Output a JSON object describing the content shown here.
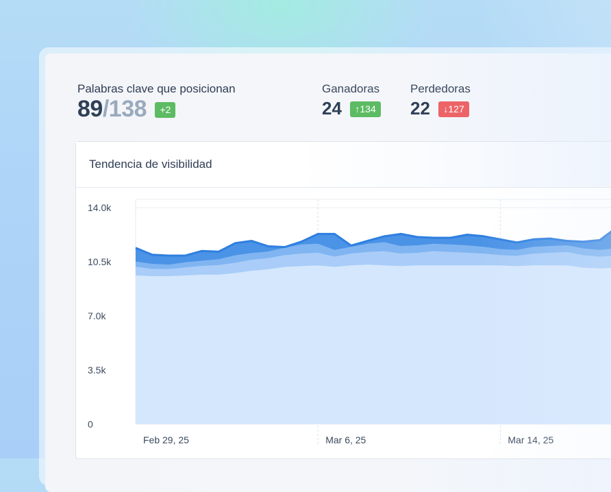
{
  "summary": {
    "label": "Palabras clave que posicionan",
    "count": "89",
    "separator": "/",
    "total": "138",
    "change": "+2"
  },
  "winners": {
    "label": "Ganadoras",
    "count": "24",
    "change": "↑134"
  },
  "losers": {
    "label": "Perdedoras",
    "count": "22",
    "change": "↓127"
  },
  "card": {
    "title": "Tendencia de visibilidad"
  },
  "colors": {
    "base_fill": "#d5e7fd",
    "layer_light": "#a9cdf8",
    "layer_mid": "#80b5f1",
    "layer_dark": "#4b93e6",
    "line": "#2f7fe0"
  },
  "chart_data": {
    "type": "area",
    "title": "Tendencia de visibilidad",
    "ylim": [
      0,
      14000
    ],
    "y_ticks": [
      "0",
      "3.5k",
      "7.0k",
      "10.5k",
      "14.0k"
    ],
    "y_tick_values": [
      0,
      3500,
      7000,
      10500,
      14000
    ],
    "x_tick_labels": [
      "Feb 29, 25",
      "Mar 6, 25",
      "Mar 14, 25"
    ],
    "x_tick_index": [
      0,
      11,
      22
    ],
    "grid": true,
    "x_count": 31,
    "series": [
      {
        "values": [
          9650,
          9600,
          9600,
          9650,
          9700,
          9700,
          9800,
          9950,
          10050,
          10200,
          10250,
          10300,
          10200,
          10300,
          10350,
          10300,
          10250,
          10300,
          10300,
          10300,
          10300,
          10300,
          10300,
          10250,
          10300,
          10300,
          10300,
          10150,
          10100,
          10150,
          10200
        ]
      },
      {
        "values": [
          10150,
          10000,
          10000,
          10100,
          10200,
          10250,
          10400,
          10600,
          10700,
          10900,
          11000,
          11050,
          10800,
          11000,
          11100,
          11150,
          11000,
          11050,
          11150,
          11100,
          11050,
          11000,
          10900,
          10850,
          11000,
          11050,
          11100,
          10900,
          10800,
          10850,
          11200
        ]
      },
      {
        "values": [
          10350,
          10200,
          10200,
          10300,
          10400,
          10500,
          10650,
          10850,
          11000,
          11200,
          11350,
          11400,
          11100,
          11300,
          11450,
          11550,
          11300,
          11350,
          11450,
          11450,
          11350,
          11300,
          11150,
          11100,
          11300,
          11350,
          11400,
          11100,
          11050,
          11100,
          11800
        ]
      },
      {
        "values": [
          10550,
          10400,
          10350,
          10500,
          10600,
          10700,
          10950,
          11100,
          11200,
          11450,
          11650,
          11700,
          11300,
          11500,
          11700,
          11800,
          11550,
          11600,
          11700,
          11650,
          11600,
          11500,
          11350,
          11300,
          11500,
          11550,
          11600,
          11400,
          11300,
          11400,
          12300
        ]
      },
      {
        "values": [
          11400,
          10950,
          10900,
          10900,
          11200,
          11150,
          11700,
          11850,
          11500,
          11450,
          11800,
          12300,
          12300,
          11550,
          11850,
          12150,
          12300,
          12100,
          12050,
          12050,
          12250,
          12150,
          11950,
          11750,
          11950,
          12000,
          11850,
          11800,
          11900,
          12700,
          13500
        ]
      }
    ]
  }
}
